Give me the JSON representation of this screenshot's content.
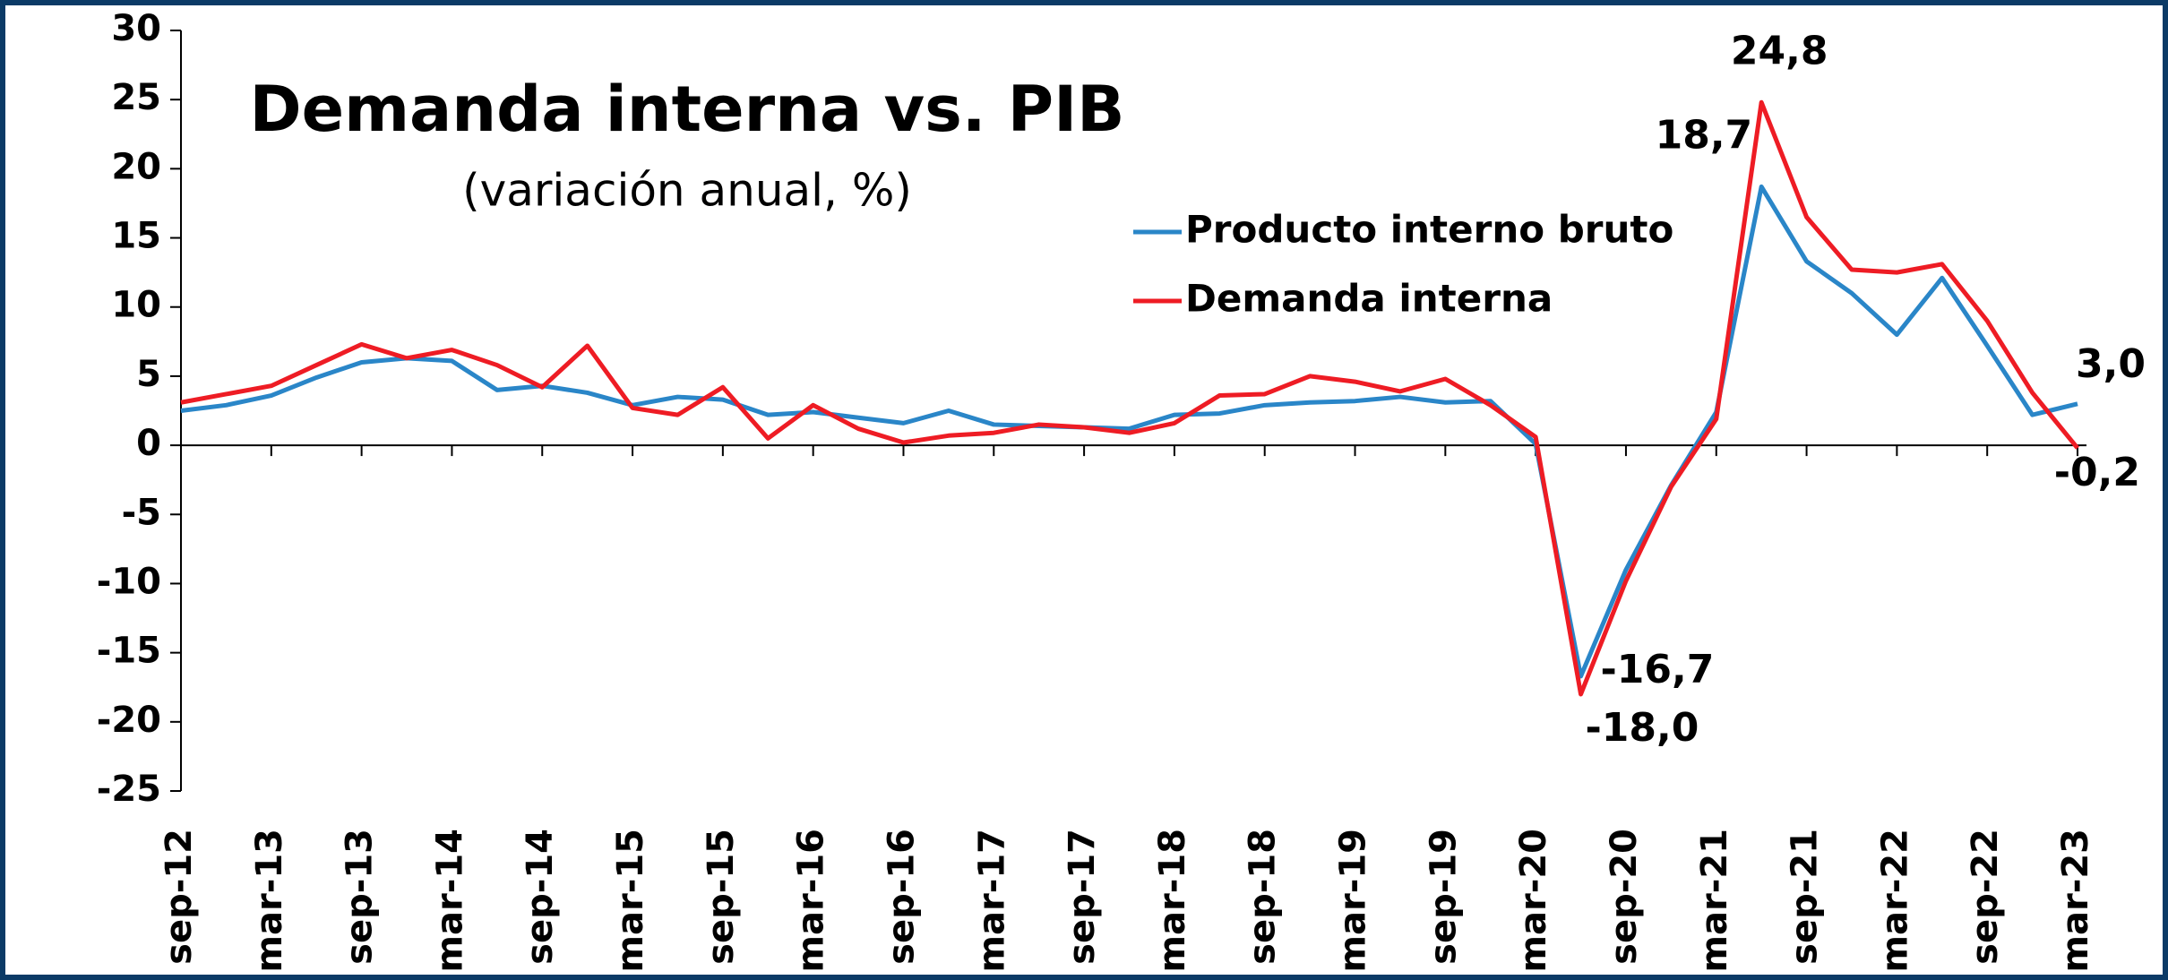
{
  "chart_data": {
    "type": "line",
    "title": "Demanda interna vs. PIB",
    "subtitle": "(variación anual, %)",
    "categories": [
      "sep-12",
      null,
      "mar-13",
      null,
      "sep-13",
      null,
      "mar-14",
      null,
      "sep-14",
      null,
      "mar-15",
      null,
      "sep-15",
      null,
      "mar-16",
      null,
      "sep-16",
      null,
      "mar-17",
      null,
      "sep-17",
      null,
      "mar-18",
      null,
      "sep-18",
      null,
      "mar-19",
      null,
      "sep-19",
      null,
      "mar-20",
      null,
      "sep-20",
      null,
      "mar-21",
      null,
      "sep-21",
      null,
      "mar-22",
      null,
      "sep-22",
      null,
      "mar-23"
    ],
    "series": [
      {
        "name": "Producto interno bruto",
        "color": "#2a86c8",
        "label_color": "#1f4e79",
        "values": [
          2.5,
          2.9,
          3.6,
          4.9,
          6.0,
          6.3,
          6.1,
          4.0,
          4.3,
          3.8,
          2.9,
          3.5,
          3.3,
          2.2,
          2.4,
          2.0,
          1.6,
          2.5,
          1.5,
          1.4,
          1.3,
          1.2,
          2.2,
          2.3,
          2.9,
          3.1,
          3.2,
          3.5,
          3.1,
          3.2,
          0.1,
          -16.7,
          -9.0,
          -2.9,
          2.4,
          18.7,
          13.3,
          11.0,
          8.0,
          12.1,
          7.2,
          2.2,
          3.0
        ],
        "value_labels": [
          null,
          null,
          null,
          null,
          null,
          null,
          null,
          null,
          null,
          null,
          null,
          null,
          null,
          null,
          null,
          null,
          null,
          null,
          null,
          null,
          null,
          null,
          null,
          null,
          null,
          null,
          null,
          null,
          null,
          null,
          null,
          "-16,7",
          null,
          null,
          null,
          "18,7",
          null,
          null,
          null,
          null,
          null,
          null,
          "3,0"
        ]
      },
      {
        "name": "Demanda interna",
        "color": "#ee1c24",
        "label_color": "#ee1c24",
        "values": [
          3.1,
          3.7,
          4.3,
          5.8,
          7.3,
          6.3,
          6.9,
          5.8,
          4.2,
          7.2,
          2.7,
          2.2,
          4.2,
          0.5,
          2.9,
          1.2,
          0.2,
          0.7,
          0.9,
          1.5,
          1.3,
          0.9,
          1.6,
          3.6,
          3.7,
          5.0,
          4.6,
          3.9,
          4.8,
          2.9,
          0.6,
          -18.0,
          -9.8,
          -3.0,
          1.9,
          24.8,
          16.5,
          12.7,
          12.5,
          13.1,
          9.0,
          3.8,
          -0.2
        ],
        "value_labels": [
          null,
          null,
          null,
          null,
          null,
          null,
          null,
          null,
          null,
          null,
          null,
          null,
          null,
          null,
          null,
          null,
          null,
          null,
          null,
          null,
          null,
          null,
          null,
          null,
          null,
          null,
          null,
          null,
          null,
          null,
          null,
          "-18,0",
          null,
          null,
          null,
          "24,8",
          null,
          null,
          null,
          null,
          null,
          null,
          "-0,2"
        ]
      }
    ],
    "ylim": [
      -25,
      30
    ],
    "yticks": [
      30,
      25,
      20,
      15,
      10,
      5,
      0,
      -5,
      -10,
      -15,
      -20,
      -25
    ],
    "grid": false,
    "legend": "top-right"
  }
}
